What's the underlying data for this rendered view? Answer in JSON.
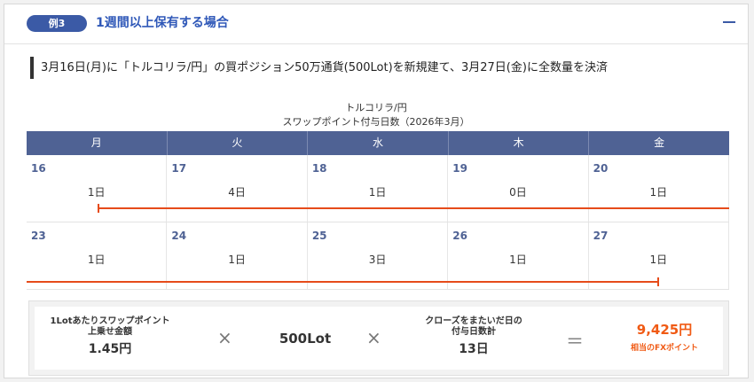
{
  "header": {
    "badge": "例3",
    "title": "1週間以上保有する場合",
    "collapse_icon": "minus-icon"
  },
  "summary": "3月16日(月)に「トルコリラ/円」の買ポジション50万通貨(500Lot)を新規建て、3月27日(金)に全数量を決済",
  "calendar": {
    "pair": "トルコリラ/円",
    "subtitle": "スワップポイント付与日数（2026年3月）",
    "weekdays": [
      "月",
      "火",
      "水",
      "木",
      "金"
    ],
    "weeks": [
      {
        "dates": [
          "16",
          "17",
          "18",
          "19",
          "20"
        ],
        "days": [
          "1日",
          "4日",
          "1日",
          "0日",
          "1日"
        ]
      },
      {
        "dates": [
          "23",
          "24",
          "25",
          "26",
          "27"
        ],
        "days": [
          "1日",
          "1日",
          "3日",
          "1日",
          "1日"
        ]
      }
    ],
    "holding_color": "#e64b1a"
  },
  "calculation": {
    "swap_label_1": "1Lotあたりスワップポイント",
    "swap_label_2": "上乗せ金額",
    "swap_value": "1.45円",
    "times_1": "×",
    "lots": "500Lot",
    "times_2": "×",
    "days_label_1": "クローズをまたいだ日の",
    "days_label_2": "付与日数計",
    "days_value": "13日",
    "equals": "＝",
    "result_value": "9,425円",
    "result_label": "相当のFXポイント"
  }
}
